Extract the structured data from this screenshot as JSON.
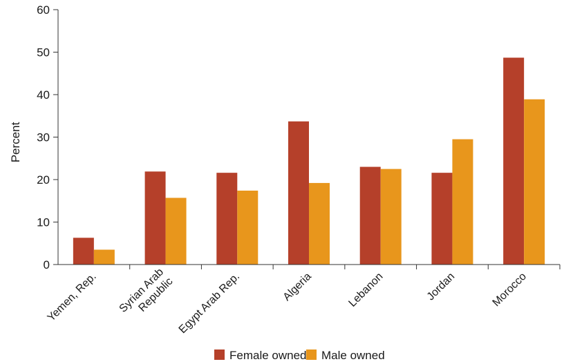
{
  "chart_data": {
    "type": "bar",
    "title": "",
    "xlabel": "",
    "ylabel": "Percent",
    "ylim": [
      0,
      60
    ],
    "yticks": [
      0,
      10,
      20,
      30,
      40,
      50,
      60
    ],
    "grid": false,
    "legend_position": "bottom-center",
    "categories": [
      [
        "Yemen, Rep."
      ],
      [
        "Syrian Arab",
        "Republic"
      ],
      [
        "Egypt Arab Rep."
      ],
      [
        "Algeria"
      ],
      [
        "Lebanon"
      ],
      [
        "Jordan"
      ],
      [
        "Morocco"
      ]
    ],
    "series": [
      {
        "name": "Female owned",
        "color": "#b5402a",
        "values": [
          6.3,
          21.9,
          21.6,
          33.7,
          23.0,
          21.6,
          48.7
        ]
      },
      {
        "name": "Male owned",
        "color": "#e8961c",
        "values": [
          3.5,
          15.7,
          17.4,
          19.2,
          22.5,
          29.5,
          38.9
        ]
      }
    ]
  }
}
